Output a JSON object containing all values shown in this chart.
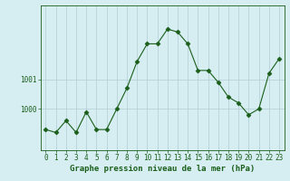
{
  "x": [
    0,
    1,
    2,
    3,
    4,
    5,
    6,
    7,
    8,
    9,
    10,
    11,
    12,
    13,
    14,
    15,
    16,
    17,
    18,
    19,
    20,
    21,
    22,
    23
  ],
  "y": [
    999.3,
    999.2,
    999.6,
    999.2,
    999.9,
    999.3,
    999.3,
    1000.0,
    1000.7,
    1001.6,
    1002.2,
    1002.2,
    1002.7,
    1002.6,
    1002.2,
    1001.3,
    1001.3,
    1000.9,
    1000.4,
    1000.2,
    999.8,
    1000.0,
    1001.2,
    1001.7
  ],
  "line_color": "#1a5e1a",
  "marker": "D",
  "marker_size": 2.5,
  "bg_color": "#d6eef2",
  "grid_color": "#b0cdd4",
  "xlabel": "Graphe pression niveau de la mer (hPa)",
  "xlabel_fontsize": 6.5,
  "tick_fontsize": 5.5,
  "ytick_labels": [
    "1000",
    "1001"
  ],
  "ytick_values": [
    1000,
    1001
  ],
  "ylim": [
    998.6,
    1003.5
  ],
  "xlim": [
    -0.5,
    23.5
  ]
}
